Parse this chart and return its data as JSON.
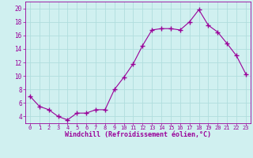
{
  "x": [
    0,
    1,
    2,
    3,
    4,
    5,
    6,
    7,
    8,
    9,
    10,
    11,
    12,
    13,
    14,
    15,
    16,
    17,
    18,
    19,
    20,
    21,
    22,
    23
  ],
  "y": [
    7.0,
    5.5,
    5.0,
    4.0,
    3.5,
    4.5,
    4.5,
    5.0,
    5.0,
    8.0,
    9.8,
    11.8,
    14.5,
    16.8,
    17.0,
    17.0,
    16.8,
    18.0,
    19.8,
    17.5,
    16.5,
    14.8,
    13.0,
    10.3
  ],
  "line_color": "#990099",
  "marker": "+",
  "marker_size": 4,
  "bg_color": "#d0f0f0",
  "grid_color": "#b0dede",
  "xlabel": "Windchill (Refroidissement éolien,°C)",
  "xlabel_color": "#990099",
  "tick_color": "#990099",
  "ylim": [
    3,
    21
  ],
  "xlim": [
    -0.5,
    23.5
  ],
  "yticks": [
    4,
    6,
    8,
    10,
    12,
    14,
    16,
    18,
    20
  ],
  "xticks": [
    0,
    1,
    2,
    3,
    4,
    5,
    6,
    7,
    8,
    9,
    10,
    11,
    12,
    13,
    14,
    15,
    16,
    17,
    18,
    19,
    20,
    21,
    22,
    23
  ],
  "title": ""
}
